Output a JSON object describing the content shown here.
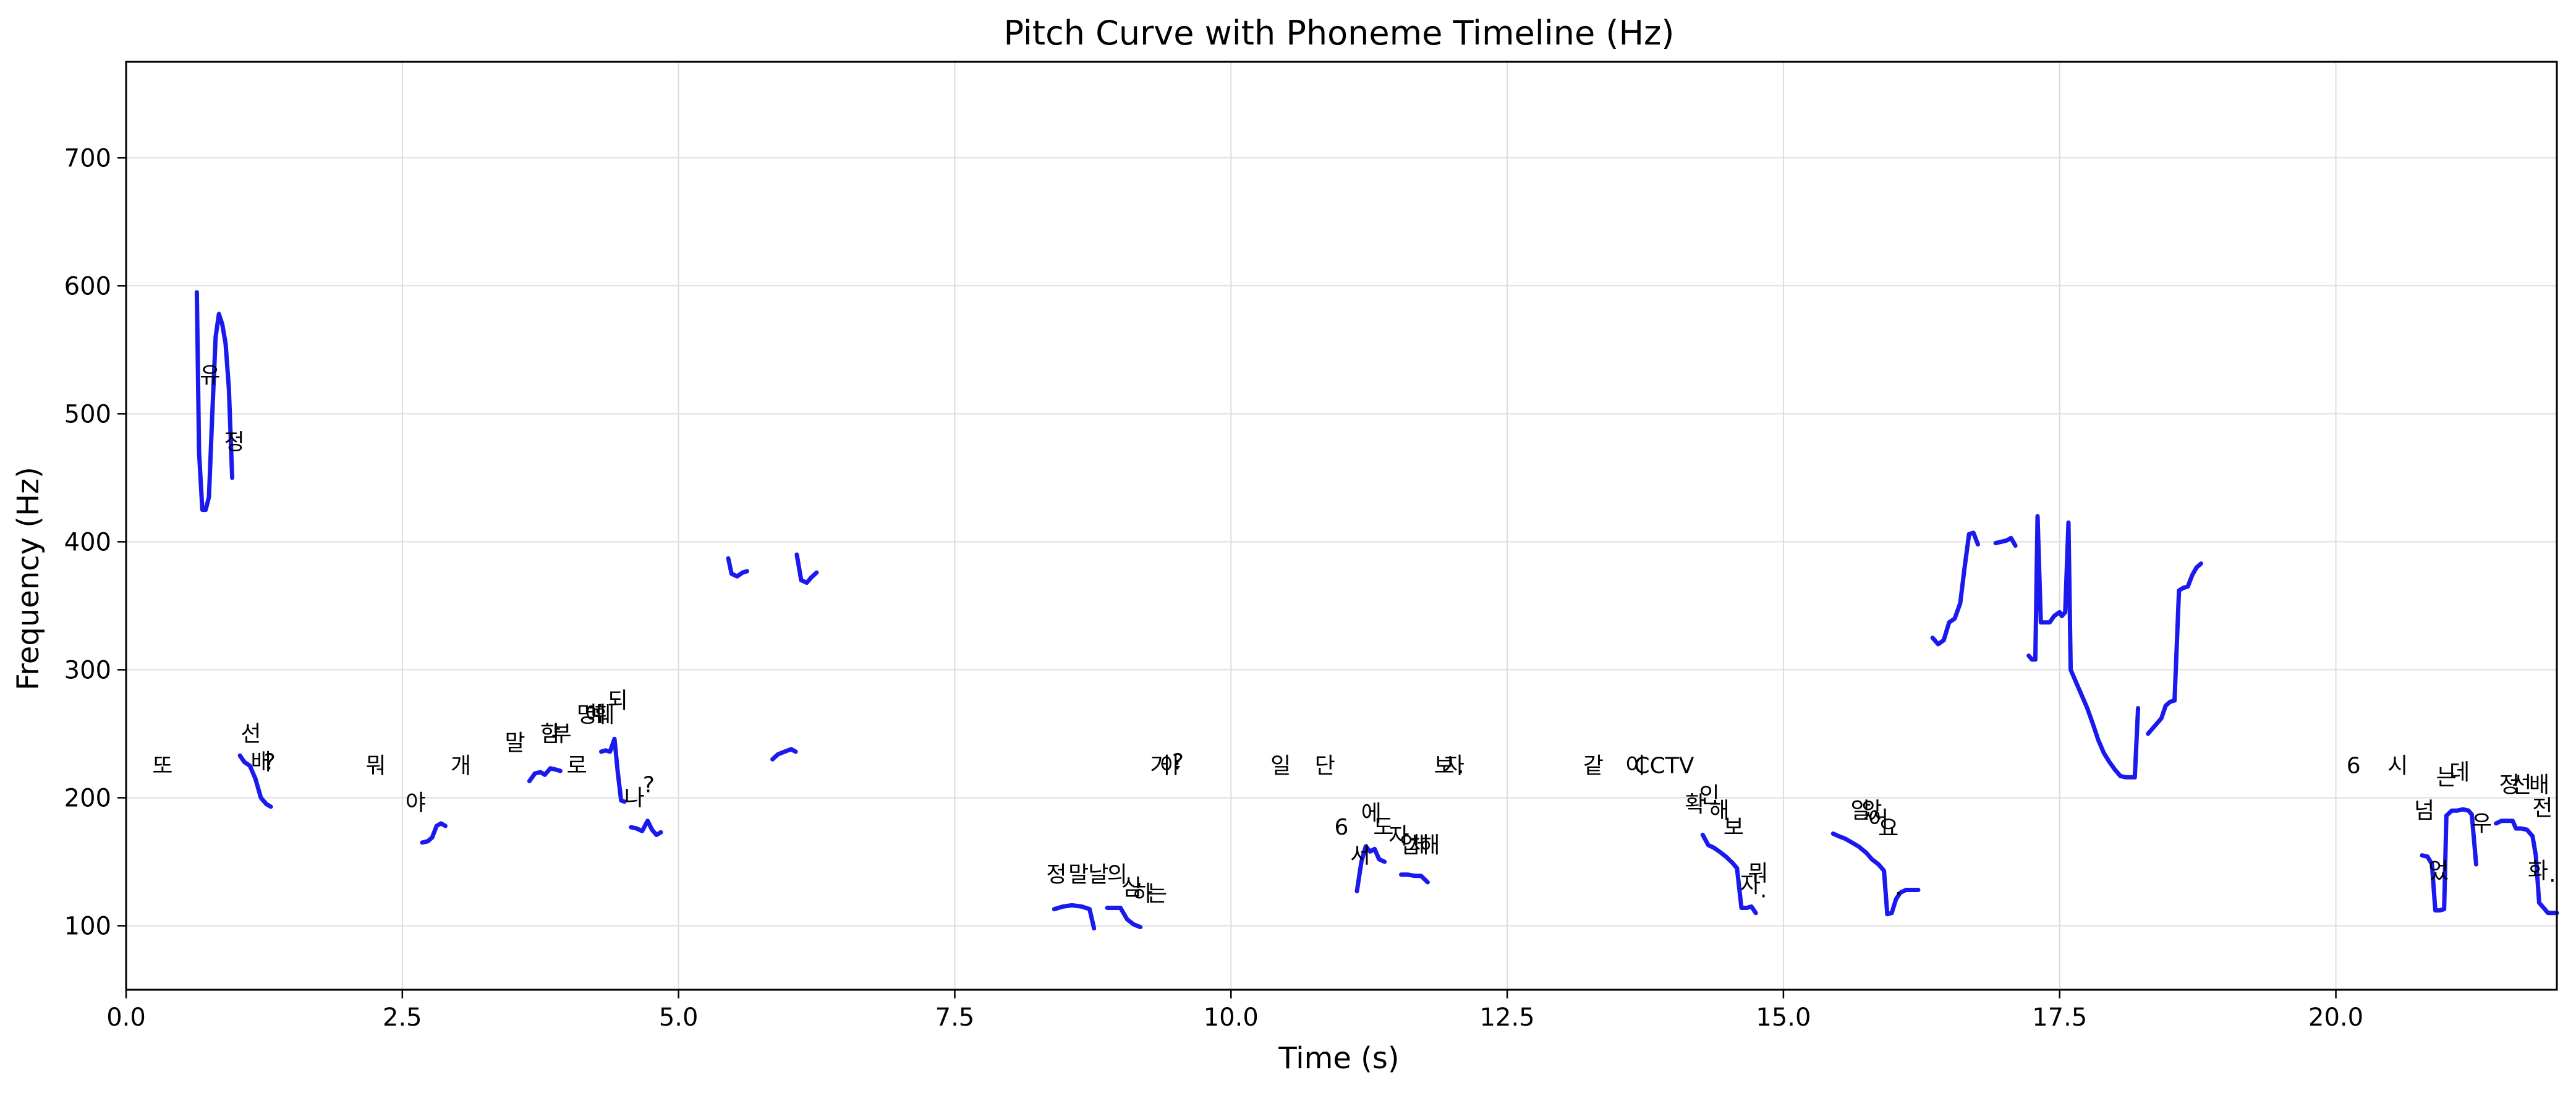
{
  "chart_data": {
    "type": "line",
    "title": "Pitch Curve with Phoneme Timeline (Hz)",
    "xlabel": "Time (s)",
    "ylabel": "Frequency (Hz)",
    "xlim": [
      0,
      22
    ],
    "ylim": [
      50,
      775
    ],
    "x_ticks": [
      0.0,
      2.5,
      5.0,
      7.5,
      10.0,
      12.5,
      15.0,
      17.5,
      20.0
    ],
    "x_tick_labels": [
      "0.0",
      "2.5",
      "5.0",
      "7.5",
      "10.0",
      "12.5",
      "15.0",
      "17.5",
      "20.0"
    ],
    "y_ticks": [
      100,
      200,
      300,
      400,
      500,
      600,
      700
    ],
    "y_tick_labels": [
      "100",
      "200",
      "300",
      "400",
      "500",
      "600",
      "700"
    ],
    "grid": true,
    "line_color": "#1a1aee",
    "series": [
      {
        "values": [
          [
            0.64,
            595
          ],
          [
            0.66,
            470
          ],
          [
            0.69,
            425
          ],
          [
            0.72,
            425
          ],
          [
            0.75,
            435
          ],
          [
            0.78,
            500
          ],
          [
            0.81,
            560
          ],
          [
            0.84,
            578
          ],
          [
            0.87,
            570
          ],
          [
            0.9,
            555
          ],
          [
            0.93,
            520
          ],
          [
            0.96,
            450
          ]
        ]
      },
      {
        "values": [
          [
            1.03,
            233
          ],
          [
            1.07,
            228
          ],
          [
            1.12,
            225
          ],
          [
            1.17,
            215
          ],
          [
            1.22,
            200
          ],
          [
            1.27,
            195
          ],
          [
            1.31,
            193
          ]
        ]
      },
      {
        "values": [
          [
            2.68,
            165
          ],
          [
            2.73,
            166
          ],
          [
            2.77,
            169
          ],
          [
            2.81,
            178
          ],
          [
            2.85,
            180
          ],
          [
            2.89,
            178
          ]
        ]
      },
      {
        "values": [
          [
            3.65,
            213
          ],
          [
            3.7,
            219
          ],
          [
            3.75,
            220
          ],
          [
            3.79,
            218
          ],
          [
            3.84,
            223
          ],
          [
            3.89,
            222
          ],
          [
            3.93,
            221
          ]
        ]
      },
      {
        "values": [
          [
            4.3,
            236
          ],
          [
            4.34,
            237
          ],
          [
            4.38,
            236
          ],
          [
            4.42,
            246
          ],
          [
            4.45,
            220
          ],
          [
            4.48,
            198
          ],
          [
            4.51,
            197
          ]
        ]
      },
      {
        "values": [
          [
            4.57,
            177
          ],
          [
            4.62,
            176
          ],
          [
            4.67,
            174
          ],
          [
            4.72,
            182
          ],
          [
            4.76,
            175
          ],
          [
            4.8,
            171
          ],
          [
            4.84,
            173
          ]
        ]
      },
      {
        "values": [
          [
            5.45,
            387
          ],
          [
            5.48,
            375
          ],
          [
            5.53,
            373
          ],
          [
            5.58,
            376
          ],
          [
            5.62,
            377
          ]
        ]
      },
      {
        "values": [
          [
            5.85,
            230
          ],
          [
            5.9,
            234
          ],
          [
            5.96,
            236
          ],
          [
            6.02,
            238
          ],
          [
            6.06,
            236
          ]
        ]
      },
      {
        "values": [
          [
            6.07,
            390
          ],
          [
            6.11,
            370
          ],
          [
            6.16,
            368
          ],
          [
            6.2,
            372
          ],
          [
            6.25,
            376
          ]
        ]
      },
      {
        "values": [
          [
            8.4,
            113
          ],
          [
            8.48,
            115
          ],
          [
            8.56,
            116
          ],
          [
            8.65,
            115
          ],
          [
            8.72,
            113
          ],
          [
            8.76,
            98
          ]
        ]
      },
      {
        "values": [
          [
            8.88,
            114
          ],
          [
            8.95,
            114
          ],
          [
            9.0,
            114
          ],
          [
            9.06,
            105
          ],
          [
            9.12,
            101
          ],
          [
            9.18,
            99
          ]
        ]
      },
      {
        "values": [
          [
            11.14,
            127
          ],
          [
            11.18,
            150
          ],
          [
            11.22,
            162
          ],
          [
            11.26,
            158
          ],
          [
            11.3,
            160
          ],
          [
            11.34,
            152
          ],
          [
            11.39,
            150
          ]
        ]
      },
      {
        "values": [
          [
            11.54,
            140
          ],
          [
            11.6,
            140
          ],
          [
            11.66,
            139
          ],
          [
            11.72,
            139
          ],
          [
            11.78,
            134
          ]
        ]
      },
      {
        "values": [
          [
            14.27,
            171
          ],
          [
            14.32,
            163
          ],
          [
            14.37,
            161
          ],
          [
            14.42,
            158
          ],
          [
            14.48,
            154
          ],
          [
            14.54,
            149
          ],
          [
            14.58,
            145
          ],
          [
            14.62,
            114
          ],
          [
            14.67,
            114
          ],
          [
            14.71,
            115
          ],
          [
            14.75,
            110
          ]
        ]
      },
      {
        "values": [
          [
            15.45,
            172
          ],
          [
            15.5,
            170
          ],
          [
            15.56,
            168
          ],
          [
            15.62,
            165
          ],
          [
            15.68,
            162
          ],
          [
            15.75,
            157
          ],
          [
            15.8,
            152
          ],
          [
            15.86,
            148
          ],
          [
            15.91,
            143
          ],
          [
            15.94,
            109
          ],
          [
            15.98,
            110
          ],
          [
            16.02,
            121
          ],
          [
            16.06,
            126
          ],
          [
            16.11,
            128
          ],
          [
            16.16,
            128
          ],
          [
            16.22,
            128
          ]
        ]
      },
      {
        "values": [
          [
            16.35,
            325
          ],
          [
            16.4,
            320
          ],
          [
            16.45,
            323
          ],
          [
            16.5,
            337
          ],
          [
            16.55,
            340
          ],
          [
            16.6,
            352
          ],
          [
            16.64,
            380
          ],
          [
            16.68,
            406
          ],
          [
            16.72,
            407
          ],
          [
            16.76,
            398
          ]
        ]
      },
      {
        "values": [
          [
            16.92,
            399
          ],
          [
            16.97,
            400
          ],
          [
            17.02,
            401
          ],
          [
            17.06,
            403
          ],
          [
            17.1,
            397
          ]
        ]
      },
      {
        "values": [
          [
            17.22,
            311
          ],
          [
            17.25,
            308
          ],
          [
            17.28,
            308
          ],
          [
            17.3,
            420
          ],
          [
            17.33,
            337
          ],
          [
            17.37,
            337
          ],
          [
            17.41,
            337
          ],
          [
            17.45,
            342
          ],
          [
            17.5,
            345
          ],
          [
            17.52,
            342
          ],
          [
            17.55,
            345
          ],
          [
            17.58,
            415
          ],
          [
            17.6,
            300
          ],
          [
            17.65,
            290
          ],
          [
            17.7,
            280
          ],
          [
            17.75,
            270
          ],
          [
            17.8,
            258
          ],
          [
            17.85,
            245
          ],
          [
            17.9,
            235
          ],
          [
            17.95,
            228
          ],
          [
            18.0,
            222
          ],
          [
            18.05,
            217
          ],
          [
            18.1,
            216
          ],
          [
            18.15,
            216
          ],
          [
            18.18,
            216
          ],
          [
            18.21,
            270
          ]
        ]
      },
      {
        "values": [
          [
            18.3,
            250
          ],
          [
            18.36,
            256
          ],
          [
            18.42,
            262
          ],
          [
            18.46,
            272
          ],
          [
            18.5,
            275
          ],
          [
            18.54,
            276
          ],
          [
            18.58,
            362
          ],
          [
            18.62,
            364
          ],
          [
            18.66,
            365
          ],
          [
            18.7,
            374
          ],
          [
            18.74,
            380
          ],
          [
            18.78,
            383
          ]
        ]
      },
      {
        "values": [
          [
            20.78,
            155
          ],
          [
            20.83,
            154
          ],
          [
            20.87,
            148
          ],
          [
            20.9,
            112
          ],
          [
            20.94,
            112
          ],
          [
            20.98,
            113
          ],
          [
            21.0,
            186
          ],
          [
            21.05,
            190
          ],
          [
            21.1,
            190
          ],
          [
            21.15,
            191
          ],
          [
            21.2,
            190
          ],
          [
            21.23,
            187
          ],
          [
            21.27,
            148
          ]
        ]
      },
      {
        "values": [
          [
            21.45,
            180
          ],
          [
            21.5,
            182
          ],
          [
            21.55,
            182
          ],
          [
            21.6,
            182
          ],
          [
            21.63,
            176
          ],
          [
            21.68,
            176
          ],
          [
            21.73,
            175
          ],
          [
            21.78,
            170
          ],
          [
            21.81,
            155
          ],
          [
            21.84,
            118
          ],
          [
            21.88,
            114
          ],
          [
            21.92,
            110
          ],
          [
            21.96,
            110
          ],
          [
            22.0,
            110
          ]
        ]
      }
    ],
    "annotations": [
      {
        "text": "또",
        "x": 0.33,
        "y": 225
      },
      {
        "text": "유",
        "x": 0.76,
        "y": 530
      },
      {
        "text": "정",
        "x": 0.98,
        "y": 478
      },
      {
        "text": "선",
        "x": 1.13,
        "y": 250
      },
      {
        "text": "배",
        "x": 1.22,
        "y": 228
      },
      {
        "text": "?",
        "x": 1.3,
        "y": 228
      },
      {
        "text": "뭐",
        "x": 2.26,
        "y": 225
      },
      {
        "text": "야",
        "x": 2.62,
        "y": 196
      },
      {
        "text": "개",
        "x": 3.03,
        "y": 225
      },
      {
        "text": "말",
        "x": 3.52,
        "y": 243
      },
      {
        "text": "함",
        "x": 3.84,
        "y": 250
      },
      {
        "text": "부",
        "x": 3.94,
        "y": 250
      },
      {
        "text": "로",
        "x": 4.08,
        "y": 225
      },
      {
        "text": "명",
        "x": 4.17,
        "y": 265
      },
      {
        "text": "예",
        "x": 4.25,
        "y": 265
      },
      {
        "text": "훼",
        "x": 4.33,
        "y": 265
      },
      {
        "text": "되",
        "x": 4.45,
        "y": 276
      },
      {
        "text": "나",
        "x": 4.6,
        "y": 200
      },
      {
        "text": "?",
        "x": 4.73,
        "y": 210
      },
      {
        "text": "정",
        "x": 8.42,
        "y": 140
      },
      {
        "text": "말",
        "x": 8.62,
        "y": 140
      },
      {
        "text": "날",
        "x": 8.8,
        "y": 140
      },
      {
        "text": "의",
        "x": 8.97,
        "y": 140
      },
      {
        "text": "심",
        "x": 9.1,
        "y": 130
      },
      {
        "text": "하",
        "x": 9.2,
        "y": 125
      },
      {
        "text": "는",
        "x": 9.33,
        "y": 125
      },
      {
        "text": "거",
        "x": 9.36,
        "y": 225
      },
      {
        "text": "야",
        "x": 9.45,
        "y": 225
      },
      {
        "text": "?",
        "x": 9.52,
        "y": 228
      },
      {
        "text": "일",
        "x": 10.45,
        "y": 225
      },
      {
        "text": "단",
        "x": 10.85,
        "y": 225
      },
      {
        "text": "6",
        "x": 11.0,
        "y": 177
      },
      {
        "text": "에",
        "x": 11.27,
        "y": 188
      },
      {
        "text": "서",
        "x": 11.17,
        "y": 155
      },
      {
        "text": "도",
        "x": 11.38,
        "y": 177
      },
      {
        "text": "자",
        "x": 11.52,
        "y": 170
      },
      {
        "text": "업",
        "x": 11.62,
        "y": 163
      },
      {
        "text": "체",
        "x": 11.7,
        "y": 163
      },
      {
        "text": "해",
        "x": 11.8,
        "y": 163
      },
      {
        "text": "보",
        "x": 11.93,
        "y": 225
      },
      {
        "text": "자",
        "x": 12.02,
        "y": 225
      },
      {
        "text": ".",
        "x": 12.08,
        "y": 225
      },
      {
        "text": "같",
        "x": 13.28,
        "y": 225
      },
      {
        "text": "이",
        "x": 13.66,
        "y": 225
      },
      {
        "text": "CCTV",
        "x": 13.92,
        "y": 225
      },
      {
        "text": "확",
        "x": 14.2,
        "y": 195
      },
      {
        "text": "인",
        "x": 14.33,
        "y": 202
      },
      {
        "text": "해",
        "x": 14.42,
        "y": 190
      },
      {
        "text": "보",
        "x": 14.55,
        "y": 177
      },
      {
        "text": "자",
        "x": 14.7,
        "y": 132
      },
      {
        "text": "뭐",
        "x": 14.77,
        "y": 141
      },
      {
        "text": ".",
        "x": 14.82,
        "y": 128
      },
      {
        "text": "알",
        "x": 15.7,
        "y": 190
      },
      {
        "text": "았",
        "x": 15.8,
        "y": 190
      },
      {
        "text": "어",
        "x": 15.86,
        "y": 183
      },
      {
        "text": "요",
        "x": 15.95,
        "y": 176
      },
      {
        "text": ".",
        "x": 16.04,
        "y": 130
      },
      {
        "text": "6",
        "x": 20.16,
        "y": 225
      },
      {
        "text": "시",
        "x": 20.56,
        "y": 225
      },
      {
        "text": "넘",
        "x": 20.8,
        "y": 190
      },
      {
        "text": "었",
        "x": 20.93,
        "y": 143
      },
      {
        "text": "는",
        "x": 21.0,
        "y": 216
      },
      {
        "text": "데",
        "x": 21.12,
        "y": 220
      },
      {
        "text": "우",
        "x": 21.32,
        "y": 180
      },
      {
        "text": "정",
        "x": 21.57,
        "y": 210
      },
      {
        "text": "선",
        "x": 21.68,
        "y": 210
      },
      {
        "text": "배",
        "x": 21.84,
        "y": 210
      },
      {
        "text": "전",
        "x": 21.87,
        "y": 192
      },
      {
        "text": "화",
        "x": 21.83,
        "y": 143
      },
      {
        "text": ".",
        "x": 21.96,
        "y": 140
      }
    ]
  }
}
